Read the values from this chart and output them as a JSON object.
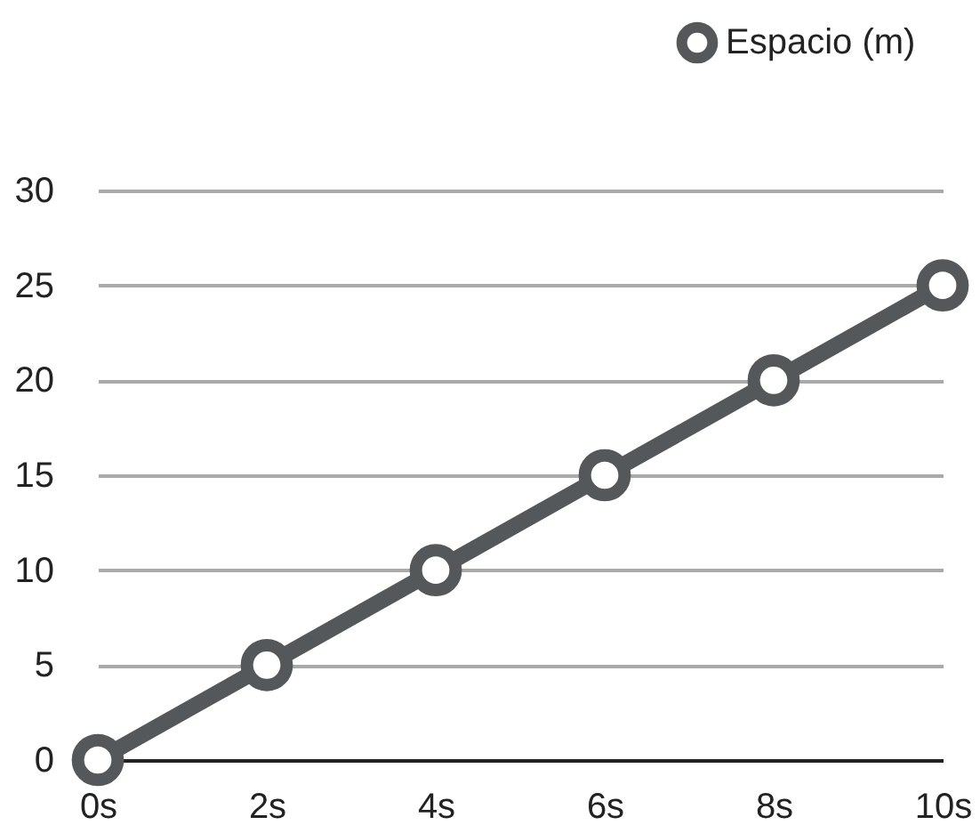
{
  "chart_data": {
    "type": "line",
    "categories": [
      "0s",
      "2s",
      "4s",
      "6s",
      "8s",
      "10s"
    ],
    "series": [
      {
        "name": "Espacio (m)",
        "color": "#55585b",
        "values": [
          0,
          5,
          10,
          15,
          20,
          25
        ]
      }
    ],
    "ylim": [
      0,
      30
    ],
    "yticks": [
      0,
      5,
      10,
      15,
      20,
      25,
      30
    ],
    "grid": "y",
    "legend": "top right",
    "marker": "circle",
    "line_style": "solid"
  }
}
